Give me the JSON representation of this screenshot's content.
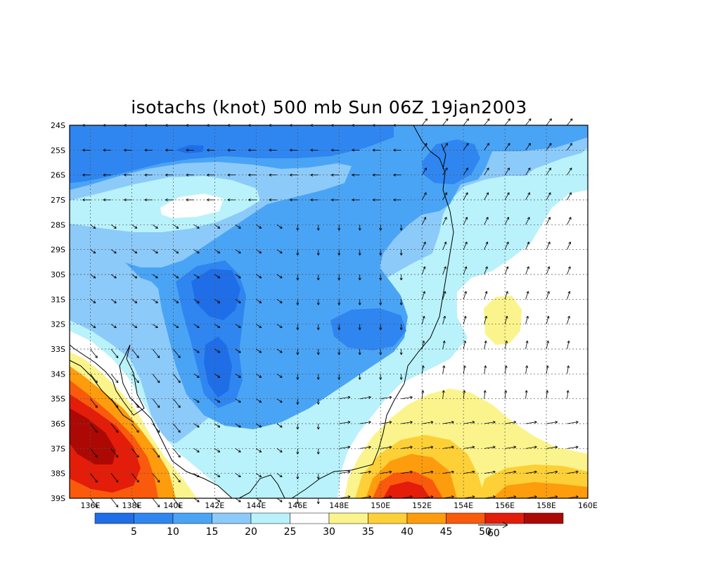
{
  "title": "isotachs (knot) 500 mb Sun 06Z 19jan2003",
  "map": {
    "lon_range": [
      135,
      160
    ],
    "lat_range": [
      -39,
      -24
    ],
    "x_ticks": [
      "136E",
      "138E",
      "140E",
      "142E",
      "144E",
      "146E",
      "148E",
      "150E",
      "152E",
      "154E",
      "156E",
      "158E",
      "160E"
    ],
    "y_ticks": [
      "24S",
      "25S",
      "26S",
      "27S",
      "28S",
      "29S",
      "30S",
      "31S",
      "32S",
      "33S",
      "34S",
      "35S",
      "36S",
      "37S",
      "38S",
      "39S"
    ],
    "grid": true,
    "grid_style": "dotted"
  },
  "colors": {
    "levels": [
      "#1f6ee8",
      "#2f86f0",
      "#4aa4f5",
      "#8ccaf9",
      "#b9f2fb",
      "#ffffff",
      "#fbf48c",
      "#fdd037",
      "#fd9c0d",
      "#fa5a0c",
      "#e31d0a",
      "#ac0905"
    ],
    "coast": "#000000"
  },
  "legend": {
    "labels": [
      "5",
      "10",
      "15",
      "20",
      "25",
      "30",
      "35",
      "40",
      "45",
      "50"
    ],
    "reference_vector": "60"
  }
}
